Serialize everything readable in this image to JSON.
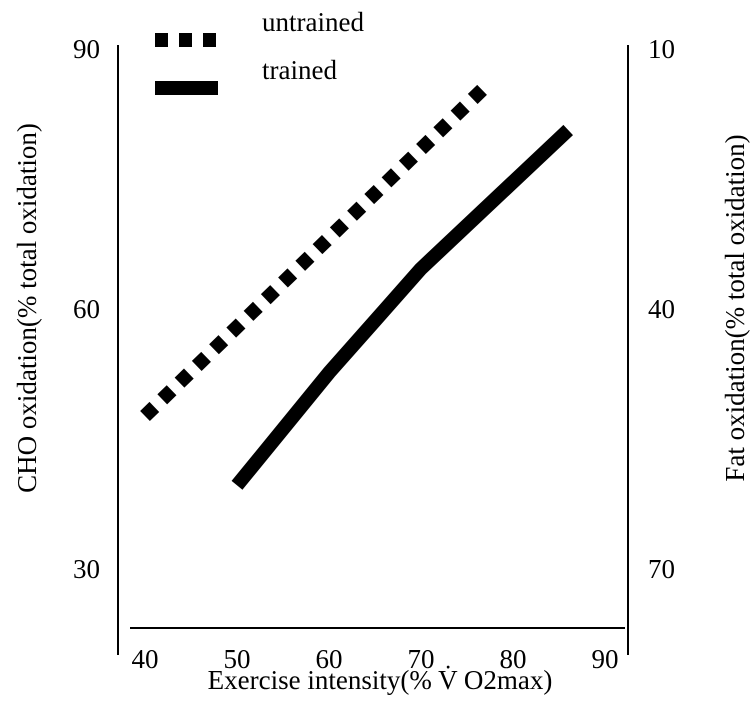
{
  "chart_data": {
    "type": "line",
    "x_label": "Exercise  intensity(% V̇ O2max)",
    "y_label": "CHO oxidation(% total oxidation)",
    "y2_label": "Fat oxidation(% total oxidation)",
    "xlim": [
      40,
      90
    ],
    "xticks": [
      40,
      50,
      60,
      70,
      80,
      90
    ],
    "ylim": [
      30,
      90
    ],
    "yticks": [
      30,
      60,
      90
    ],
    "y2lim": [
      70,
      10
    ],
    "y2ticks": [
      10,
      40,
      70
    ],
    "legend": "upper left",
    "series": [
      {
        "name": "untrained",
        "color": "#000000",
        "style": "dotted",
        "x": [
          40,
          77
        ],
        "values": [
          48,
          86
        ]
      },
      {
        "name": "trained",
        "color": "#000000",
        "style": "solid",
        "x": [
          50,
          60,
          70,
          86
        ],
        "values": [
          40,
          53,
          65,
          81
        ]
      }
    ]
  }
}
